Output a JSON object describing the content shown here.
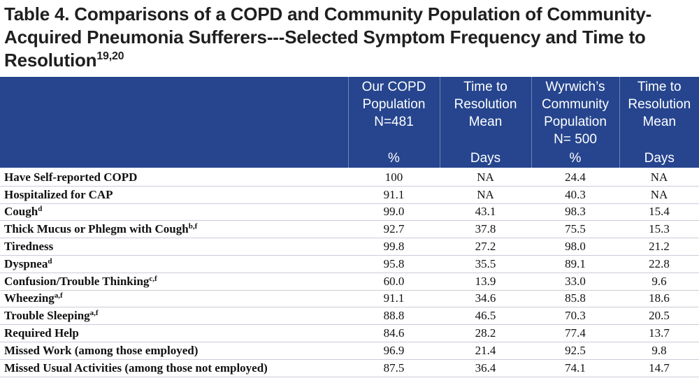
{
  "title": {
    "text": "Table 4. Comparisons of a COPD and Community Population of Community-Acquired Pneumonia Sufferers---Selected Symptom Frequency and Time to Resolution",
    "sup": "19,20"
  },
  "columns": [
    {
      "label": "",
      "unit": ""
    },
    {
      "label": "Our COPD Population N=481",
      "unit": "%"
    },
    {
      "label": "Time to Resolution Mean",
      "unit": "Days"
    },
    {
      "label": "Wyrwich’s Community Population N= 500",
      "unit": "%"
    },
    {
      "label": "Time to Resolution Mean",
      "unit": "Days"
    }
  ],
  "rows": [
    {
      "label": "Have Self-reported COPD",
      "sup": "",
      "copd_pct": "100",
      "copd_days": "NA",
      "comm_pct": "24.4",
      "comm_days": "NA"
    },
    {
      "label": "Hospitalized for CAP",
      "sup": "",
      "copd_pct": "91.1",
      "copd_days": "NA",
      "comm_pct": "40.3",
      "comm_days": "NA"
    },
    {
      "label": "Cough",
      "sup": "d",
      "copd_pct": "99.0",
      "copd_days": "43.1",
      "comm_pct": "98.3",
      "comm_days": "15.4"
    },
    {
      "label": "Thick Mucus or Phlegm with Cough",
      "sup": "b,f",
      "copd_pct": "92.7",
      "copd_days": "37.8",
      "comm_pct": "75.5",
      "comm_days": "15.3"
    },
    {
      "label": "Tiredness",
      "sup": "",
      "copd_pct": "99.8",
      "copd_days": "27.2",
      "comm_pct": "98.0",
      "comm_days": "21.2"
    },
    {
      "label": "Dyspnea",
      "sup": "d",
      "copd_pct": "95.8",
      "copd_days": "35.5",
      "comm_pct": "89.1",
      "comm_days": "22.8"
    },
    {
      "label": "Confusion/Trouble Thinking",
      "sup": "c,f",
      "copd_pct": "60.0",
      "copd_days": "13.9",
      "comm_pct": "33.0",
      "comm_days": "9.6"
    },
    {
      "label": "Wheezing",
      "sup": "a,f",
      "copd_pct": "91.1",
      "copd_days": "34.6",
      "comm_pct": "85.8",
      "comm_days": "18.6"
    },
    {
      "label": "Trouble Sleeping",
      "sup": "a,f",
      "copd_pct": "88.8",
      "copd_days": "46.5",
      "comm_pct": "70.3",
      "comm_days": "20.5"
    },
    {
      "label": "Required Help",
      "sup": "",
      "copd_pct": "84.6",
      "copd_days": "28.2",
      "comm_pct": "77.4",
      "comm_days": "13.7"
    },
    {
      "label": "Missed Work (among those employed)",
      "sup": "",
      "copd_pct": "96.9",
      "copd_days": "21.4",
      "comm_pct": "92.5",
      "comm_days": "9.8"
    },
    {
      "label": "Missed Usual Activities (among those not employed)",
      "sup": "",
      "copd_pct": "87.5",
      "copd_days": "36.4",
      "comm_pct": "74.1",
      "comm_days": "14.7"
    }
  ]
}
